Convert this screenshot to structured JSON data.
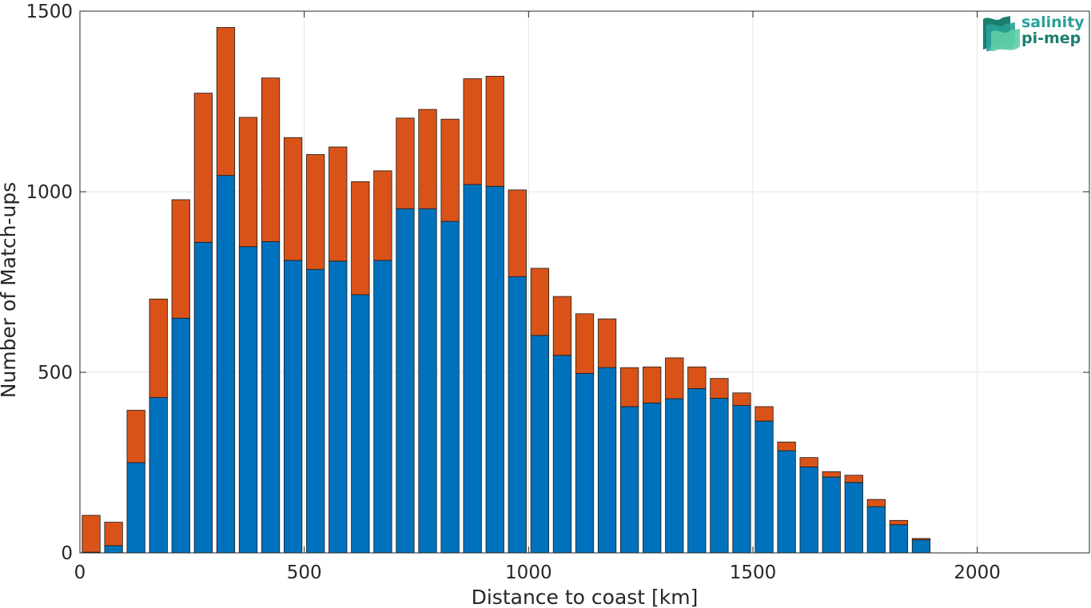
{
  "chart_data": {
    "type": "bar",
    "stacked": true,
    "title": "",
    "xlabel": "Distance to coast [km]",
    "ylabel": "Number of Match-ups",
    "xlim": [
      0,
      2250
    ],
    "ylim": [
      0,
      1500
    ],
    "xticks": [
      0,
      500,
      1000,
      1500,
      2000
    ],
    "yticks": [
      0,
      500,
      1000,
      1500
    ],
    "grid": true,
    "bar_width": 40,
    "x": [
      25,
      75,
      125,
      175,
      225,
      275,
      325,
      375,
      425,
      475,
      525,
      575,
      625,
      675,
      725,
      775,
      825,
      875,
      925,
      975,
      1025,
      1075,
      1125,
      1175,
      1225,
      1275,
      1325,
      1375,
      1425,
      1475,
      1525,
      1575,
      1625,
      1675,
      1725,
      1775,
      1825,
      1875
    ],
    "series": [
      {
        "color": "#0072BD",
        "values": [
          2,
          20,
          250,
          430,
          650,
          860,
          1045,
          848,
          862,
          810,
          785,
          808,
          715,
          810,
          953,
          953,
          918,
          1020,
          1015,
          765,
          602,
          547,
          497,
          513,
          405,
          415,
          427,
          455,
          428,
          408,
          365,
          283,
          238,
          210,
          195,
          128,
          78,
          36
        ]
      },
      {
        "color": "#D95319",
        "values": [
          102,
          65,
          145,
          273,
          328,
          413,
          410,
          358,
          453,
          340,
          318,
          316,
          313,
          248,
          251,
          275,
          283,
          293,
          305,
          240,
          186,
          163,
          165,
          135,
          108,
          100,
          113,
          60,
          55,
          35,
          40,
          24,
          26,
          15,
          20,
          20,
          12,
          4
        ]
      }
    ],
    "logo": {
      "line1": "salinity",
      "line2": "pi-mep",
      "colors": [
        "#2aa198",
        "#1a7f6e",
        "#5fcfa5"
      ]
    }
  }
}
